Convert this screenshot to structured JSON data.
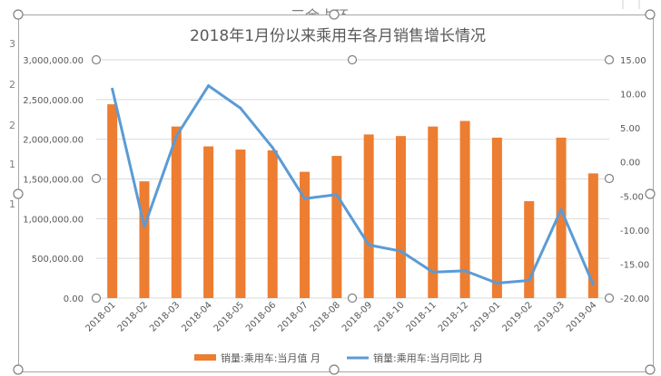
{
  "sheet": {
    "row_numbers": [
      "3",
      "2",
      "2",
      "1",
      "1"
    ],
    "partial_header_text": "三余占环"
  },
  "colors": {
    "bar": "#ed7d31",
    "line": "#5b9bd5",
    "grid": "#d9d9d9",
    "text": "#595959"
  },
  "chart_data": {
    "type": "bar",
    "title": "2018年1月份以来乘用车各月销售增长情况",
    "categories": [
      "2018-01",
      "2018-02",
      "2018-03",
      "2018-04",
      "2018-05",
      "2018-06",
      "2018-07",
      "2018-08",
      "2018-09",
      "2018-10",
      "2018-11",
      "2018-12",
      "2019-01",
      "2019-02",
      "2019-03",
      "2019-04"
    ],
    "series": [
      {
        "name": "销量:乘用车:当月值 月",
        "type": "bar",
        "axis": "left",
        "values": [
          2440000,
          1470000,
          2160000,
          1910000,
          1870000,
          1860000,
          1590000,
          1790000,
          2060000,
          2040000,
          2160000,
          2230000,
          2020000,
          1220000,
          2020000,
          1570000
        ]
      },
      {
        "name": "销量:乘用车:当月同比 月",
        "type": "line",
        "axis": "right",
        "values": [
          10.7,
          -9.5,
          3.8,
          11.2,
          7.9,
          2.1,
          -5.4,
          -4.8,
          -12.2,
          -13.1,
          -16.2,
          -16.0,
          -17.8,
          -17.4,
          -7.0,
          -18.0
        ]
      }
    ],
    "y_left": {
      "min": 0,
      "max": 3000000,
      "step": 500000,
      "tick_labels": [
        "0.00",
        "500,000.00",
        "1,000,000.00",
        "1,500,000.00",
        "2,000,000.00",
        "2,500,000.00",
        "3,000,000.00"
      ]
    },
    "y_right": {
      "min": -20,
      "max": 15,
      "step": 5,
      "tick_labels": [
        "-20.00",
        "-15.00",
        "-10.00",
        "-5.00",
        "0.00",
        "5.00",
        "10.00",
        "15.00"
      ]
    },
    "grid": true,
    "legend_position": "bottom"
  }
}
